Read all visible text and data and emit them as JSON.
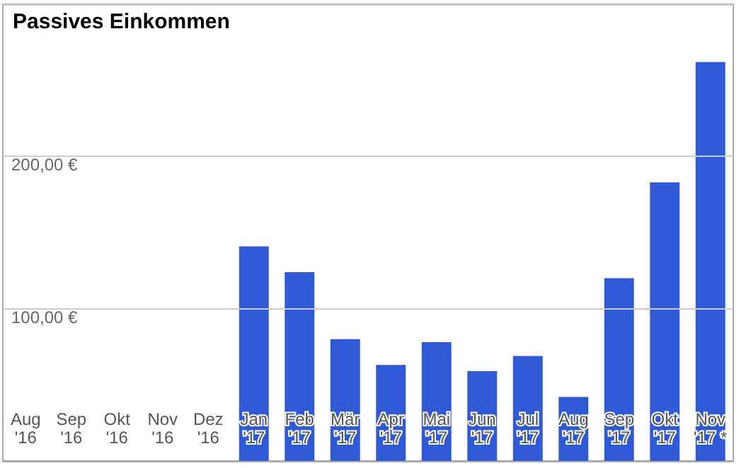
{
  "chart_data": {
    "type": "bar",
    "title": "Passives Einkommen",
    "categories": [
      "Aug\n'16",
      "Sep\n'16",
      "Okt\n'16",
      "Nov\n'16",
      "Dez\n'16",
      "Jan\n'17",
      "Feb\n'17",
      "Mär\n'17",
      "Apr\n'17",
      "Mai\n'17",
      "Jun\n'17",
      "Jul\n'17",
      "Aug\n'17",
      "Sep\n'17",
      "Okt\n'17",
      "Nov\n'17 *"
    ],
    "series": [
      {
        "color": "#3059d6",
        "values": [
          null,
          null,
          null,
          null,
          null,
          141,
          124,
          80,
          63,
          78,
          59,
          69,
          42,
          120,
          183,
          262
        ]
      }
    ],
    "ylim": [
      0,
      300
    ],
    "yticks": [
      {
        "value": 0,
        "label": null
      },
      {
        "value": 100,
        "label": "100,00 €"
      },
      {
        "value": 200,
        "label": "200,00 €"
      },
      {
        "value": 300,
        "label": null
      }
    ],
    "grid": "y"
  }
}
